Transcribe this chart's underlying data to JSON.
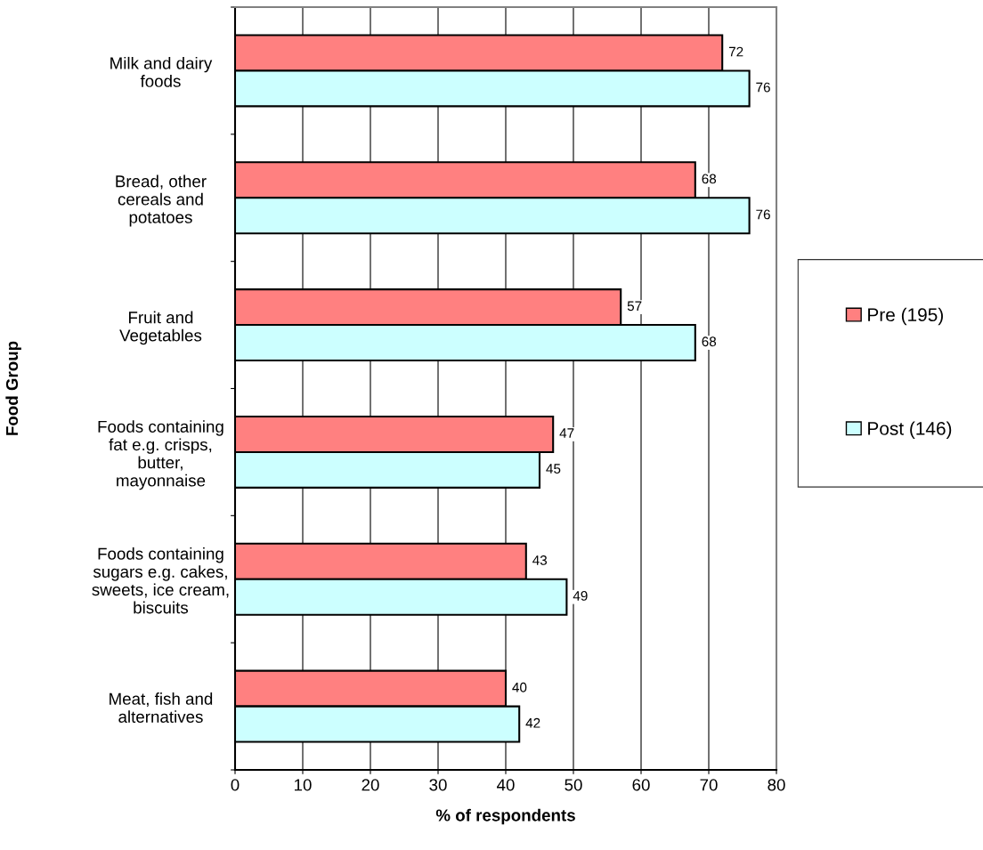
{
  "chart_data": {
    "type": "bar",
    "orientation": "horizontal",
    "xlabel": "% of respondents",
    "ylabel": "Food Group",
    "categories": [
      "Milk and dairy\nfoods",
      "Bread, other\ncereals and\npotatoes",
      "Fruit and\nVegetables",
      "Foods containing\nfat e.g. crisps,\nbutter,\nmayonnaise",
      "Foods containing\nsugars e.g. cakes,\nsweets, ice cream,\nbiscuits",
      "Meat, fish and\nalternatives"
    ],
    "series": [
      {
        "name": "Pre (195)",
        "color": "#ff8080",
        "values": [
          72,
          68,
          57,
          47,
          43,
          40
        ]
      },
      {
        "name": "Post (146)",
        "color": "#ccffff",
        "values": [
          76,
          76,
          68,
          45,
          49,
          42
        ]
      }
    ],
    "xlim": [
      0,
      80
    ],
    "xticks": [
      0,
      10,
      20,
      30,
      40,
      50,
      60,
      70,
      80
    ],
    "grid": "x",
    "legend": "right",
    "data_labels": true
  }
}
